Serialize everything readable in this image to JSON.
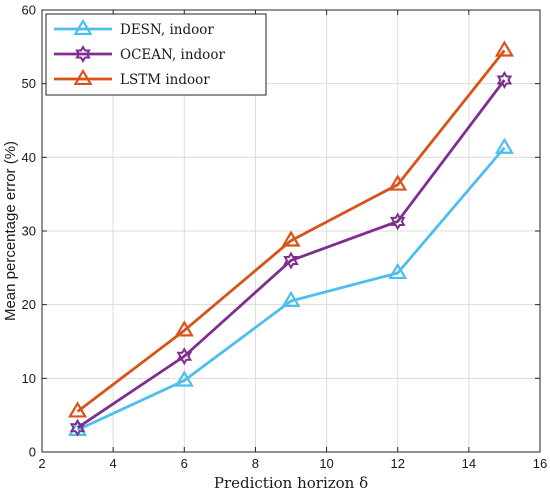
{
  "chart_data": {
    "type": "line",
    "title": "",
    "xlabel": "Prediction horizon δ",
    "ylabel": "Mean percentage error (%)",
    "xlim": [
      2,
      16
    ],
    "ylim": [
      0,
      60
    ],
    "xticks": [
      2,
      4,
      6,
      8,
      10,
      12,
      14,
      16
    ],
    "yticks": [
      0,
      10,
      20,
      30,
      40,
      50,
      60
    ],
    "grid": true,
    "legend_position": "top-left",
    "x": [
      3,
      6,
      9,
      12,
      15
    ],
    "series": [
      {
        "name": "DESN, indoor",
        "color": "#4DBEEE",
        "marker": "triangle",
        "values": [
          3.0,
          9.7,
          20.5,
          24.3,
          41.3
        ]
      },
      {
        "name": "OCEAN, indoor",
        "color": "#7E2F8E",
        "marker": "hexagram",
        "values": [
          3.3,
          13.0,
          26.0,
          31.3,
          50.5
        ]
      },
      {
        "name": "LSTM indoor",
        "color": "#D95319",
        "marker": "triangle",
        "values": [
          5.5,
          16.5,
          28.7,
          36.3,
          54.5
        ]
      }
    ]
  }
}
